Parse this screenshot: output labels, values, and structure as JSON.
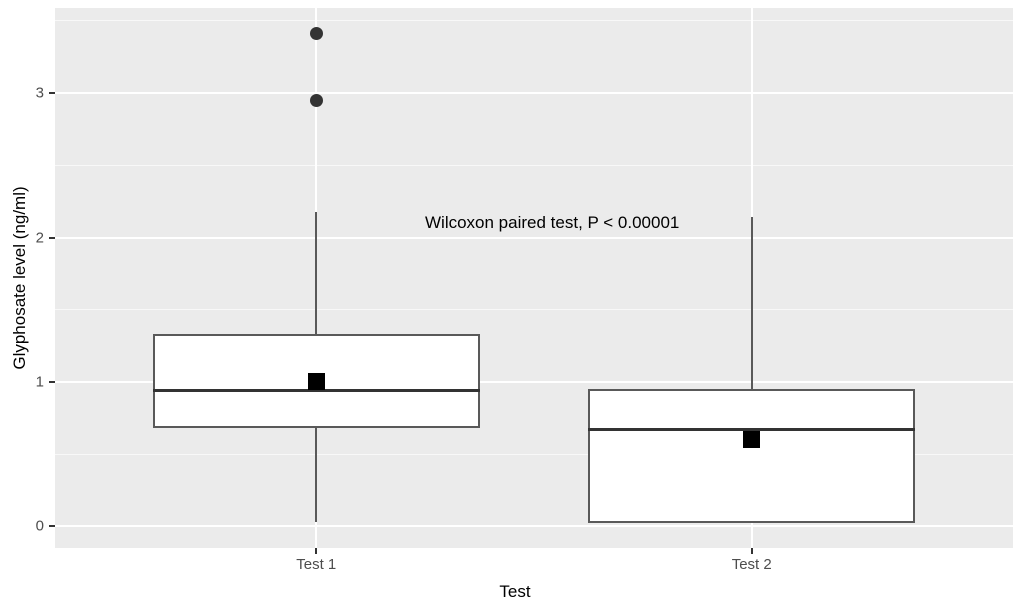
{
  "figure": {
    "background": "#ffffff",
    "panel_background": "#ebebeb"
  },
  "chart_data": {
    "type": "boxplot",
    "title": "",
    "xlabel": "Test",
    "ylabel": "Glyphosate level (ng/ml)",
    "annotation": "Wilcoxon paired test, P < 0.00001",
    "categories": [
      "Test 1",
      "Test 2"
    ],
    "ylim": [
      -0.15,
      3.59
    ],
    "yticks": [
      0,
      1,
      2,
      3
    ],
    "yticks_minor": [
      0.5,
      1.5,
      2.5,
      3.5
    ],
    "grid": true,
    "legend": "none",
    "series": [
      {
        "category": "Test 1",
        "whisker_low": 0.03,
        "q1": 0.68,
        "median": 0.94,
        "q3": 1.33,
        "whisker_high": 2.18,
        "mean": 1.0,
        "outliers": [
          2.95,
          3.41
        ]
      },
      {
        "category": "Test 2",
        "whisker_low": 0.02,
        "q1": 0.02,
        "median": 0.67,
        "q3": 0.95,
        "whisker_high": 2.14,
        "mean": 0.6,
        "outliers": []
      }
    ],
    "annotation_pos": {
      "x_frac": 0.519,
      "y_value": 2.1
    },
    "colors": {
      "box_fill": "#ffffff",
      "box_border": "#595959",
      "median": "#333333",
      "mean_marker": "#000000",
      "outlier": "#333333",
      "grid_major": "#ffffff",
      "tick_label": "#4d4d4d",
      "axis_title": "#000000"
    }
  }
}
